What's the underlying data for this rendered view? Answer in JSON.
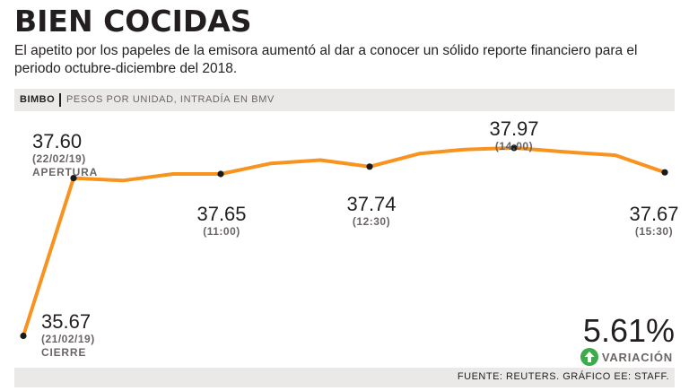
{
  "header": {
    "title": "BIEN COCIDAS",
    "subtitle": "El apetito por los papeles de la emisora aumentó al dar a conocer un sólido reporte financiero para el periodo octubre-diciembre del 2018."
  },
  "bar": {
    "ticker": "BIMBO",
    "label": "PESOS POR UNIDAD, INTRADÍA EN BMV"
  },
  "colors": {
    "line": "#f7931e",
    "accent_green": "#3dab4a",
    "bar_bg": "#ebe9e8",
    "text": "#231f20",
    "muted": "#6b6566"
  },
  "annotations": {
    "close": {
      "value": "35.67",
      "time": "(21/02/19)",
      "tag": "CIERRE"
    },
    "open": {
      "value": "37.60",
      "time": "(22/02/19)",
      "tag": "APERTURA"
    },
    "p1100": {
      "value": "37.65",
      "time": "(11:00)"
    },
    "p1230": {
      "value": "37.74",
      "time": "(12:30)"
    },
    "p1400": {
      "value": "37.97",
      "time": "(14:00)"
    },
    "p1530": {
      "value": "37.67",
      "time": "(15:30)"
    }
  },
  "variation": {
    "value": "5.61%",
    "label": "VARIACIÓN",
    "icon": "arrow-up-icon"
  },
  "footer": {
    "source": "FUENTE: REUTERS. GRÁFICO EE: STAFF."
  },
  "chart_data": {
    "type": "line",
    "title": "BIEN COCIDAS",
    "ylabel": "PESOS POR UNIDAD, INTRADÍA EN BMV",
    "ylim": [
      35.5,
      38.1
    ],
    "points": [
      {
        "x": "21/02/19 cierre",
        "y": 35.67,
        "marked": true
      },
      {
        "x": "22/02/19 apertura",
        "y": 37.6,
        "marked": true
      },
      {
        "x": "",
        "y": 37.57,
        "marked": false
      },
      {
        "x": "",
        "y": 37.65,
        "marked": false
      },
      {
        "x": "11:00",
        "y": 37.65,
        "marked": true
      },
      {
        "x": "",
        "y": 37.78,
        "marked": false
      },
      {
        "x": "",
        "y": 37.82,
        "marked": false
      },
      {
        "x": "12:30",
        "y": 37.74,
        "marked": true
      },
      {
        "x": "",
        "y": 37.9,
        "marked": false
      },
      {
        "x": "",
        "y": 37.95,
        "marked": false
      },
      {
        "x": "14:00",
        "y": 37.97,
        "marked": true
      },
      {
        "x": "",
        "y": 37.92,
        "marked": false
      },
      {
        "x": "",
        "y": 37.88,
        "marked": false
      },
      {
        "x": "15:30",
        "y": 37.67,
        "marked": true
      }
    ]
  }
}
